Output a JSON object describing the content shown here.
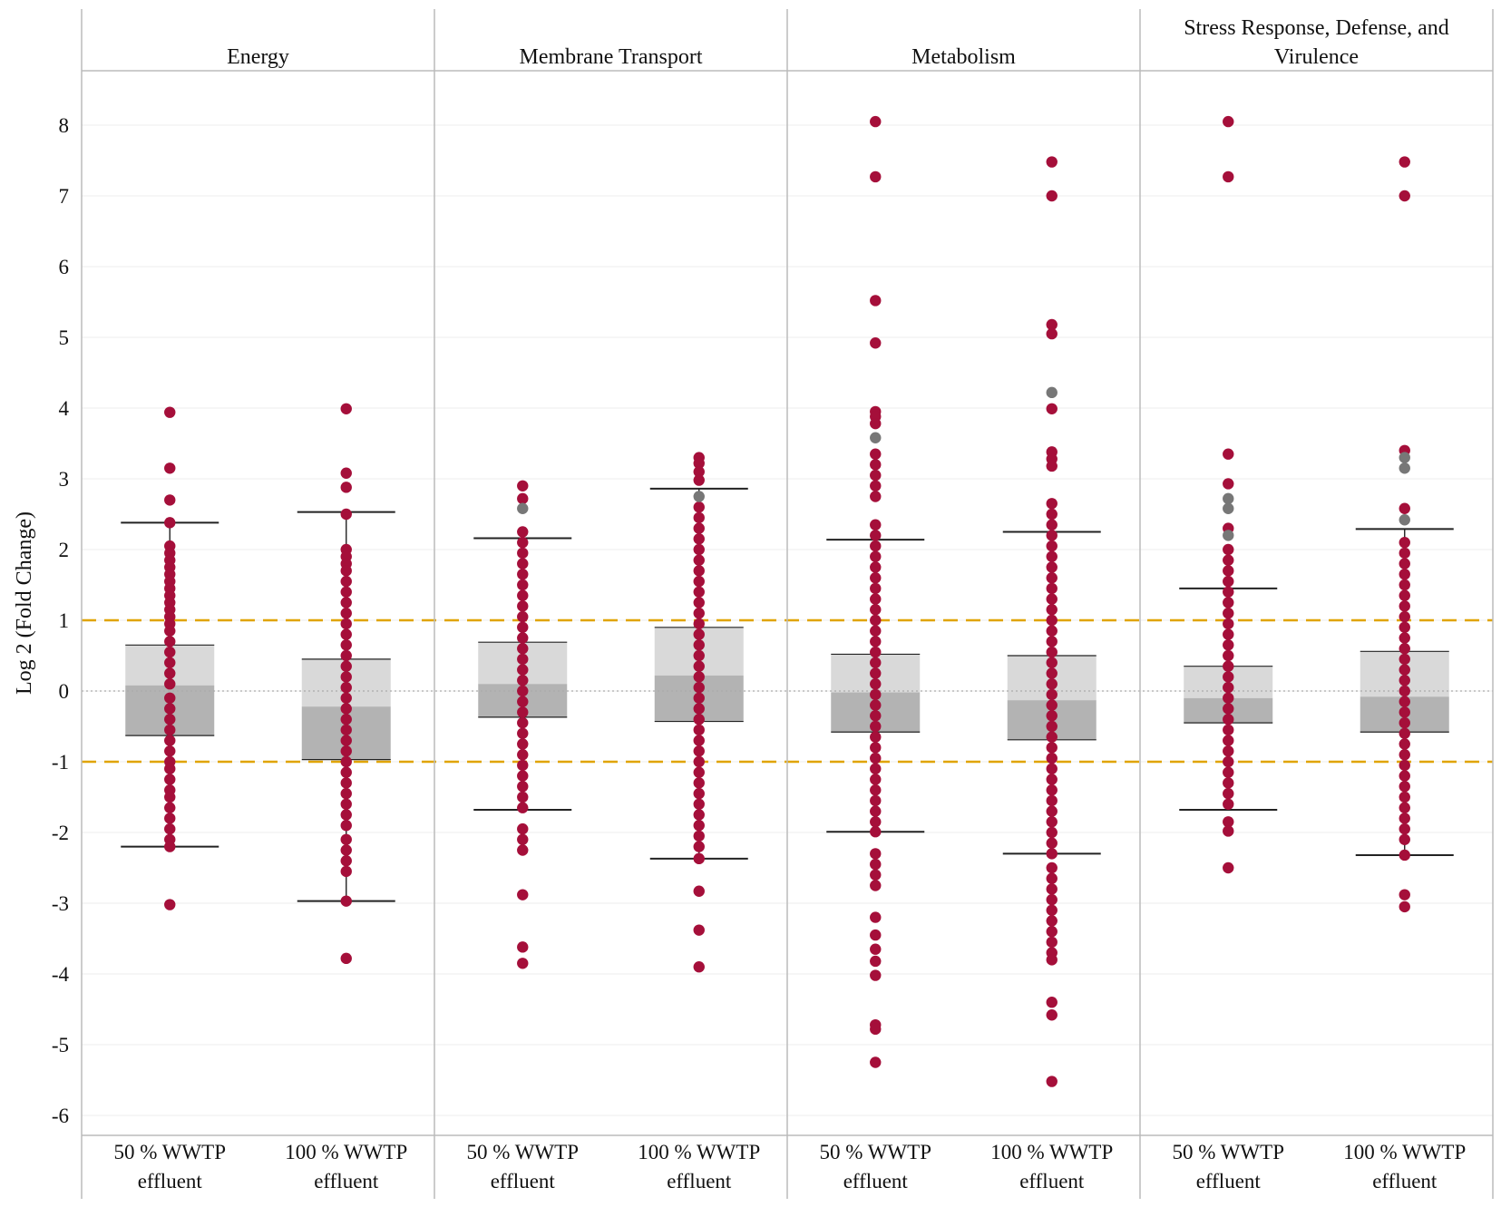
{
  "chart_data": {
    "type": "boxplot-with-points",
    "ylabel": "Log 2 (Fold Change)",
    "ylim": [
      -6.4,
      8.6
    ],
    "yticks": [
      -6,
      -5,
      -4,
      -3,
      -2,
      -1,
      0,
      1,
      2,
      3,
      4,
      5,
      6,
      7,
      8
    ],
    "threshold_lines": [
      1,
      -1
    ],
    "zero_line": 0,
    "colors": {
      "point": "#a50f3a",
      "outlier_gray": "#777777",
      "threshold": "#e0a400",
      "box_upper": "#d9d9d9",
      "box_lower": "#b3b3b3",
      "whisker": "#222222",
      "divider": "#bbbbbb",
      "gridline": "#ececec"
    },
    "groups": [
      "50 % WWTP effluent",
      "100 % WWTP effluent"
    ],
    "group_labels": [
      {
        "line1": "50 % WWTP",
        "line2": "effluent"
      },
      {
        "line1": "100 % WWTP",
        "line2": "effluent"
      }
    ],
    "panels": [
      {
        "title_lines": [
          "Energy"
        ],
        "boxes": [
          {
            "q1": -0.63,
            "median": 0.08,
            "q3": 0.65,
            "whisker_low": -2.2,
            "whisker_high": 2.38,
            "points": [
              3.94,
              3.15,
              2.7,
              2.38,
              2.05,
              1.95,
              1.85,
              1.75,
              1.65,
              1.55,
              1.45,
              1.35,
              1.25,
              1.15,
              1.05,
              0.95,
              0.85,
              0.7,
              0.55,
              0.4,
              0.25,
              0.1,
              -0.1,
              -0.25,
              -0.4,
              -0.55,
              -0.7,
              -0.85,
              -1.0,
              -1.1,
              -1.25,
              -1.4,
              -1.5,
              -1.65,
              -1.8,
              -1.95,
              -2.1,
              -2.2,
              -3.02
            ],
            "gray_points": []
          },
          {
            "q1": -0.97,
            "median": -0.22,
            "q3": 0.45,
            "whisker_low": -2.97,
            "whisker_high": 2.53,
            "points": [
              3.99,
              3.08,
              2.88,
              2.5,
              2.0,
              1.9,
              1.8,
              1.7,
              1.55,
              1.4,
              1.25,
              1.1,
              0.95,
              0.8,
              0.65,
              0.5,
              0.35,
              0.2,
              0.05,
              -0.1,
              -0.25,
              -0.4,
              -0.55,
              -0.7,
              -0.85,
              -1.0,
              -1.15,
              -1.3,
              -1.45,
              -1.6,
              -1.75,
              -1.9,
              -2.1,
              -2.25,
              -2.4,
              -2.55,
              -2.97,
              -3.78
            ],
            "gray_points": []
          }
        ]
      },
      {
        "title_lines": [
          "Membrane Transport"
        ],
        "boxes": [
          {
            "q1": -0.37,
            "median": 0.1,
            "q3": 0.69,
            "whisker_low": -1.68,
            "whisker_high": 2.16,
            "points": [
              2.9,
              2.72,
              2.25,
              2.1,
              1.95,
              1.8,
              1.65,
              1.5,
              1.35,
              1.2,
              1.05,
              0.9,
              0.75,
              0.6,
              0.45,
              0.3,
              0.15,
              0.0,
              -0.15,
              -0.3,
              -0.45,
              -0.6,
              -0.75,
              -0.9,
              -1.05,
              -1.2,
              -1.35,
              -1.5,
              -1.65,
              -1.95,
              -2.1,
              -2.25,
              -2.88,
              -3.62,
              -3.85
            ],
            "gray_points": [
              2.58
            ]
          },
          {
            "q1": -0.43,
            "median": 0.22,
            "q3": 0.9,
            "whisker_low": -2.37,
            "whisker_high": 2.86,
            "points": [
              3.3,
              3.22,
              3.1,
              2.98,
              2.6,
              2.45,
              2.3,
              2.15,
              2.0,
              1.85,
              1.7,
              1.55,
              1.4,
              1.25,
              1.1,
              0.95,
              0.8,
              0.65,
              0.5,
              0.35,
              0.2,
              0.05,
              -0.1,
              -0.25,
              -0.4,
              -0.55,
              -0.7,
              -0.85,
              -1.0,
              -1.15,
              -1.3,
              -1.45,
              -1.6,
              -1.75,
              -1.9,
              -2.05,
              -2.2,
              -2.37,
              -2.83,
              -3.38,
              -3.9
            ],
            "gray_points": [
              2.75
            ]
          }
        ]
      },
      {
        "title_lines": [
          "Metabolism"
        ],
        "boxes": [
          {
            "q1": -0.58,
            "median": -0.02,
            "q3": 0.52,
            "whisker_low": -1.99,
            "whisker_high": 2.14,
            "points": [
              8.05,
              7.27,
              5.52,
              4.92,
              3.95,
              3.88,
              3.78,
              3.35,
              3.2,
              3.05,
              2.9,
              2.75,
              2.35,
              2.2,
              2.05,
              1.9,
              1.75,
              1.6,
              1.45,
              1.3,
              1.15,
              1.0,
              0.85,
              0.7,
              0.55,
              0.4,
              0.25,
              0.1,
              -0.05,
              -0.2,
              -0.35,
              -0.5,
              -0.65,
              -0.8,
              -0.95,
              -1.1,
              -1.25,
              -1.4,
              -1.55,
              -1.7,
              -1.85,
              -1.99,
              -2.3,
              -2.45,
              -2.6,
              -2.75,
              -3.2,
              -3.45,
              -3.65,
              -3.82,
              -4.02,
              -4.72,
              -4.78,
              -5.25
            ],
            "gray_points": [
              3.58
            ]
          },
          {
            "q1": -0.69,
            "median": -0.13,
            "q3": 0.5,
            "whisker_low": -2.3,
            "whisker_high": 2.25,
            "points": [
              7.48,
              7.0,
              5.18,
              5.05,
              3.99,
              3.38,
              3.28,
              3.18,
              2.65,
              2.5,
              2.35,
              2.2,
              2.05,
              1.9,
              1.75,
              1.6,
              1.45,
              1.3,
              1.15,
              1.0,
              0.85,
              0.7,
              0.55,
              0.4,
              0.25,
              0.1,
              -0.05,
              -0.2,
              -0.35,
              -0.5,
              -0.65,
              -0.8,
              -0.95,
              -1.1,
              -1.25,
              -1.4,
              -1.55,
              -1.7,
              -1.85,
              -2.0,
              -2.15,
              -2.3,
              -2.5,
              -2.65,
              -2.8,
              -2.95,
              -3.1,
              -3.25,
              -3.4,
              -3.55,
              -3.7,
              -3.8,
              -4.4,
              -4.58,
              -5.52
            ],
            "gray_points": [
              4.22
            ]
          }
        ]
      },
      {
        "title_lines": [
          "Stress Response, Defense, and",
          "Virulence"
        ],
        "boxes": [
          {
            "q1": -0.45,
            "median": -0.1,
            "q3": 0.35,
            "whisker_low": -1.68,
            "whisker_high": 1.45,
            "points": [
              8.05,
              7.27,
              3.35,
              2.93,
              2.3,
              2.0,
              1.85,
              1.7,
              1.55,
              1.4,
              1.25,
              1.1,
              0.95,
              0.8,
              0.65,
              0.5,
              0.35,
              0.2,
              0.05,
              -0.1,
              -0.25,
              -0.4,
              -0.55,
              -0.7,
              -0.85,
              -1.0,
              -1.15,
              -1.3,
              -1.45,
              -1.6,
              -1.85,
              -1.98,
              -2.5
            ],
            "gray_points": [
              2.72,
              2.58,
              2.2
            ]
          },
          {
            "q1": -0.58,
            "median": -0.08,
            "q3": 0.56,
            "whisker_low": -2.32,
            "whisker_high": 2.29,
            "points": [
              7.48,
              7.0,
              3.4,
              2.58,
              2.1,
              1.95,
              1.8,
              1.65,
              1.5,
              1.35,
              1.2,
              1.05,
              0.9,
              0.75,
              0.6,
              0.45,
              0.3,
              0.15,
              0.0,
              -0.15,
              -0.3,
              -0.45,
              -0.6,
              -0.75,
              -0.9,
              -1.05,
              -1.2,
              -1.35,
              -1.5,
              -1.65,
              -1.8,
              -1.95,
              -2.1,
              -2.32,
              -2.88,
              -3.05
            ],
            "gray_points": [
              3.3,
              3.15,
              2.42
            ]
          }
        ]
      }
    ]
  }
}
